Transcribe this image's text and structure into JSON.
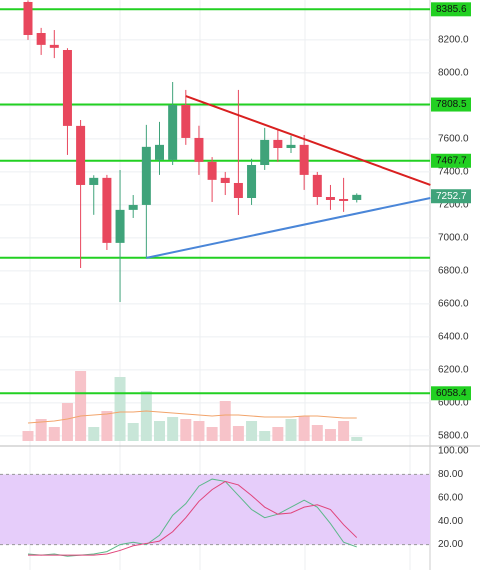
{
  "chart_data": [
    {
      "type": "candlestick",
      "open": [
        8430,
        8242,
        8170,
        8139,
        7679,
        7321,
        7364,
        6970,
        7170,
        7200,
        7473,
        7473,
        7806,
        7606,
        7461,
        7364,
        7333,
        7242,
        7442,
        7594,
        7545,
        7564,
        7382,
        7248,
        7236,
        7230
      ],
      "high": [
        8440,
        8273,
        8260,
        8150,
        7715,
        7380,
        7382,
        7412,
        7260,
        7685,
        7703,
        7945,
        7897,
        7680,
        7490,
        7400,
        7897,
        7480,
        7667,
        7655,
        7620,
        7624,
        7400,
        7321,
        7364,
        7270
      ],
      "low": [
        8200,
        8109,
        8090,
        7503,
        6818,
        7140,
        6927,
        6612,
        7121,
        6879,
        7382,
        7442,
        7564,
        7382,
        7218,
        7260,
        7139,
        7200,
        7412,
        7461,
        7515,
        7291,
        7200,
        7170,
        7158,
        7215
      ],
      "close": [
        8230,
        8170,
        8152,
        7679,
        7321,
        7364,
        6970,
        7170,
        7200,
        7552,
        7564,
        7806,
        7606,
        7461,
        7352,
        7333,
        7242,
        7442,
        7594,
        7545,
        7564,
        7382,
        7248,
        7230,
        7224,
        7261
      ],
      "up_color": "#3fa37a",
      "down_color": "#e8475d",
      "volume": [
        10,
        22,
        14,
        38,
        70,
        14,
        30,
        64,
        18,
        50,
        20,
        24,
        22,
        20,
        14,
        40,
        15,
        20,
        10,
        14,
        22,
        25,
        16,
        12,
        20,
        4
      ],
      "volume_ma": [
        18,
        19,
        20,
        22,
        25,
        26,
        27,
        29,
        29,
        30,
        29,
        28,
        27,
        26,
        25,
        26,
        26,
        25,
        24,
        24,
        24,
        25,
        25,
        24,
        23,
        23
      ],
      "vlim": [
        0,
        100
      ],
      "ylim": [
        5745,
        8442
      ],
      "yticks": [
        {
          "value": 8200,
          "label": "8200.0"
        },
        {
          "value": 8000,
          "label": "8000.0"
        },
        {
          "value": 7800,
          "label": "7800.0"
        },
        {
          "value": 7600,
          "label": "7600.0"
        },
        {
          "value": 7400,
          "label": "7400.0"
        },
        {
          "value": 7200,
          "label": "7200.0"
        },
        {
          "value": 7000,
          "label": "7000.0"
        },
        {
          "value": 6800,
          "label": "6800.0"
        },
        {
          "value": 6600,
          "label": "6600.0"
        },
        {
          "value": 6400,
          "label": "6400.0"
        },
        {
          "value": 6200,
          "label": "6200.0"
        },
        {
          "value": 6000,
          "label": "6000.0"
        },
        {
          "value": 5800,
          "label": "5800.0"
        }
      ],
      "levels": [
        8385.6,
        7808.5,
        7467.7,
        6058.4
      ],
      "unlabeled_levels": [
        6880
      ],
      "level_color": "#22d022",
      "current_price": 7252.7,
      "trendlines": [
        {
          "color": "#d92020",
          "x": [
            12,
            30.6
          ],
          "y": [
            7860,
            7321
          ]
        },
        {
          "color": "#4a86d8",
          "x": [
            9,
            30.6
          ],
          "y": [
            6879,
            7242
          ]
        }
      ]
    },
    {
      "type": "line",
      "series": [
        {
          "color": "#5cb88a",
          "values": [
            12,
            11,
            12,
            10,
            11,
            12,
            14,
            20,
            22,
            20,
            28,
            45,
            55,
            70,
            76,
            74,
            62,
            50,
            43,
            46,
            52,
            58,
            52,
            38,
            22,
            18
          ]
        },
        {
          "color": "#e0457b",
          "values": [
            11,
            11,
            11,
            11,
            11,
            11,
            12,
            15,
            19,
            21,
            23,
            31,
            43,
            57,
            67,
            74,
            71,
            62,
            52,
            46,
            47,
            52,
            54,
            50,
            37,
            26
          ]
        }
      ],
      "band": [
        20,
        80
      ],
      "band_color": "#e6cdfa",
      "ylim": [
        0,
        100
      ],
      "yticks": [
        {
          "value": 20,
          "label": "20.00"
        },
        {
          "value": 40,
          "label": "40.00"
        },
        {
          "value": 60,
          "label": "60.00"
        },
        {
          "value": 80,
          "label": "80.00"
        },
        {
          "value": 100,
          "label": "100.00"
        }
      ]
    }
  ]
}
